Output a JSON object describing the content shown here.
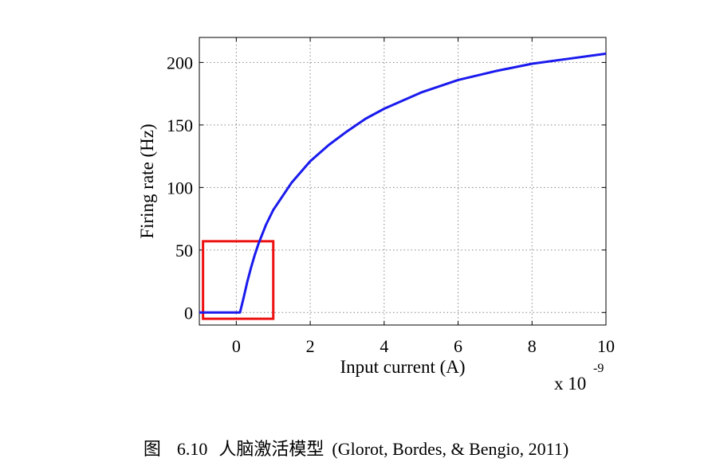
{
  "chart_data": {
    "type": "line",
    "xlabel": "Input current (A)",
    "ylabel": "Firing rate (Hz)",
    "x_multiplier": "x 10",
    "x_multiplier_exp": "-9",
    "xlim": [
      -1,
      10
    ],
    "ylim": [
      -10,
      220
    ],
    "x_ticks": [
      0,
      2,
      4,
      6,
      8,
      10
    ],
    "y_ticks": [
      0,
      50,
      100,
      150,
      200
    ],
    "grid": true,
    "series": [
      {
        "color": "#1a1aee",
        "x": [
          -1,
          0,
          0.1,
          0.2,
          0.3,
          0.4,
          0.5,
          0.6,
          0.8,
          1.0,
          1.5,
          2.0,
          2.5,
          3.0,
          3.5,
          4.0,
          5.0,
          6.0,
          7.0,
          8.0,
          9.0,
          10.0
        ],
        "y": [
          0,
          0,
          0,
          12,
          25,
          36,
          46,
          55,
          70,
          82,
          104,
          121,
          134,
          145,
          155,
          163,
          176,
          186,
          193,
          199,
          203,
          207
        ]
      }
    ],
    "highlight_box": {
      "color": "#ee1111",
      "x": [
        -0.9,
        1.0
      ],
      "y": [
        -5,
        57
      ]
    }
  },
  "caption": {
    "figure_label": "图",
    "number": "6.10",
    "title": "人脑激活模型",
    "citation": "(Glorot, Bordes, & Bengio, 2011)"
  }
}
